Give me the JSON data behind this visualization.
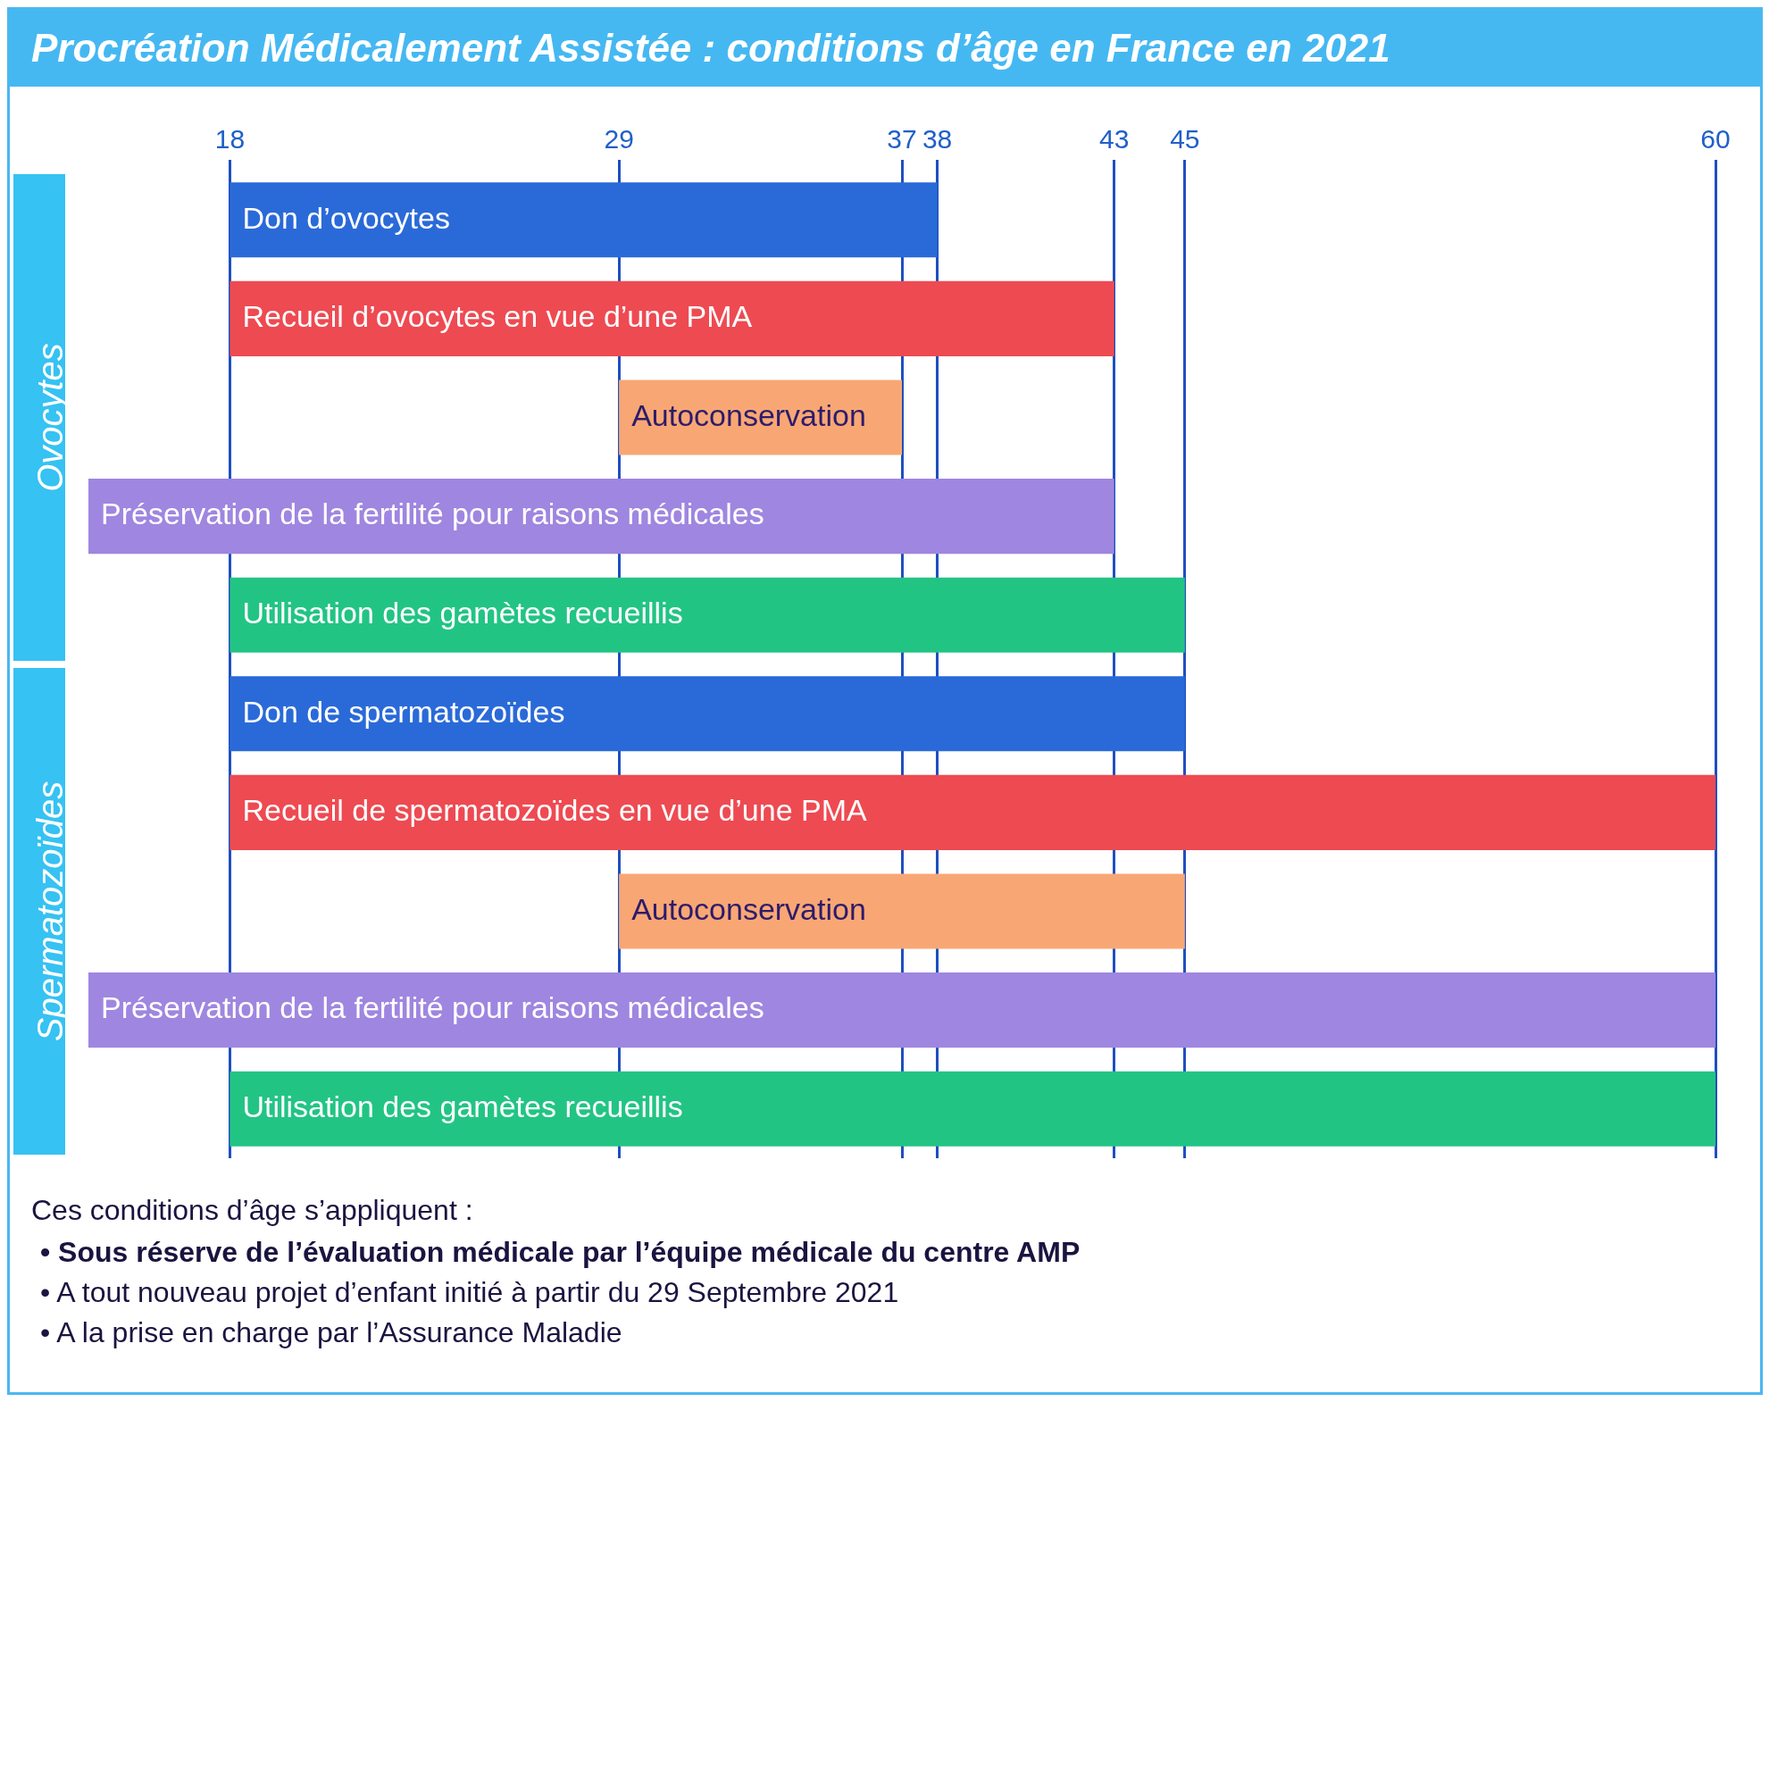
{
  "chart_data": {
    "type": "bar",
    "orientation": "horizontal",
    "title": "Procréation Médicalement Assistée : conditions d’âge en France en 2021",
    "categories": [
      "Don d’ovocytes",
      "Recueil d’ovocytes en vue d’une PMA",
      "Autoconservation",
      "Préservation de la fertilité pour raisons médicales",
      "Utilisation des gamètes recueillis",
      "Don de spermatozoïdes",
      "Recueil de spermatozoïdes en vue d’une PMA",
      "Autoconservation",
      "Préservation de la fertilité pour raisons médicales",
      "Utilisation des gamètes recueillis"
    ],
    "base": [
      18,
      18,
      29,
      14,
      18,
      18,
      18,
      29,
      14,
      18
    ],
    "values": [
      20,
      25,
      8,
      29,
      27,
      27,
      42,
      16,
      46,
      42
    ],
    "colors": [
      "#2a6ad8",
      "#ee4a52",
      "#f8a774",
      "#9f86e0",
      "#22c484",
      "#2a6ad8",
      "#ee4a52",
      "#f8a774",
      "#9f86e0",
      "#22c484"
    ],
    "xlim": [
      14,
      60
    ],
    "xticks": [
      18,
      29,
      37,
      38,
      43,
      45,
      60
    ],
    "grid": "x",
    "legend": false,
    "annotations": [
      "Ovocytes",
      "Spermatozoïdes",
      "Ces conditions d’âge s’appliquent :",
      "• Sous réserve de l’évaluation médicale par l’équipe médicale du centre AMP",
      "• A tout nouveau projet d’enfant initié à partir du 29 Septembre 2021",
      "• A la prise en charge par l’Assurance Maladie"
    ]
  }
}
